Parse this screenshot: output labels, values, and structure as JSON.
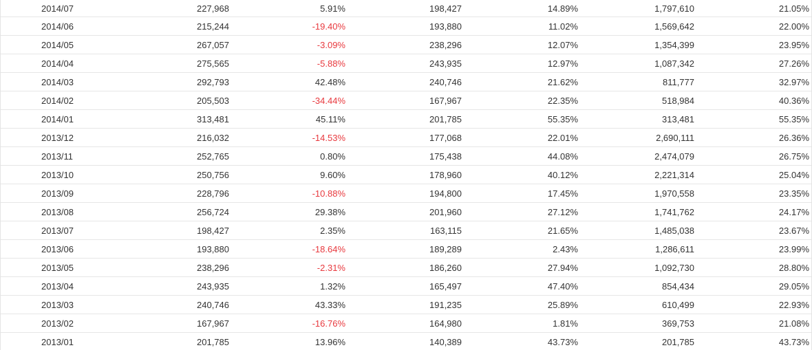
{
  "colors": {
    "text": "#333333",
    "negative": "#e8393e",
    "grid": "#e6e6e6"
  },
  "rows": [
    [
      "2014/07",
      "227,968",
      "5.91%",
      "198,427",
      "14.89%",
      "1,797,610",
      "21.05%"
    ],
    [
      "2014/06",
      "215,244",
      "-19.40%",
      "193,880",
      "11.02%",
      "1,569,642",
      "22.00%"
    ],
    [
      "2014/05",
      "267,057",
      "-3.09%",
      "238,296",
      "12.07%",
      "1,354,399",
      "23.95%"
    ],
    [
      "2014/04",
      "275,565",
      "-5.88%",
      "243,935",
      "12.97%",
      "1,087,342",
      "27.26%"
    ],
    [
      "2014/03",
      "292,793",
      "42.48%",
      "240,746",
      "21.62%",
      "811,777",
      "32.97%"
    ],
    [
      "2014/02",
      "205,503",
      "-34.44%",
      "167,967",
      "22.35%",
      "518,984",
      "40.36%"
    ],
    [
      "2014/01",
      "313,481",
      "45.11%",
      "201,785",
      "55.35%",
      "313,481",
      "55.35%"
    ],
    [
      "2013/12",
      "216,032",
      "-14.53%",
      "177,068",
      "22.01%",
      "2,690,111",
      "26.36%"
    ],
    [
      "2013/11",
      "252,765",
      "0.80%",
      "175,438",
      "44.08%",
      "2,474,079",
      "26.75%"
    ],
    [
      "2013/10",
      "250,756",
      "9.60%",
      "178,960",
      "40.12%",
      "2,221,314",
      "25.04%"
    ],
    [
      "2013/09",
      "228,796",
      "-10.88%",
      "194,800",
      "17.45%",
      "1,970,558",
      "23.35%"
    ],
    [
      "2013/08",
      "256,724",
      "29.38%",
      "201,960",
      "27.12%",
      "1,741,762",
      "24.17%"
    ],
    [
      "2013/07",
      "198,427",
      "2.35%",
      "163,115",
      "21.65%",
      "1,485,038",
      "23.67%"
    ],
    [
      "2013/06",
      "193,880",
      "-18.64%",
      "189,289",
      "2.43%",
      "1,286,611",
      "23.99%"
    ],
    [
      "2013/05",
      "238,296",
      "-2.31%",
      "186,260",
      "27.94%",
      "1,092,730",
      "28.80%"
    ],
    [
      "2013/04",
      "243,935",
      "1.32%",
      "165,497",
      "47.40%",
      "854,434",
      "29.05%"
    ],
    [
      "2013/03",
      "240,746",
      "43.33%",
      "191,235",
      "25.89%",
      "610,499",
      "22.93%"
    ],
    [
      "2013/02",
      "167,967",
      "-16.76%",
      "164,980",
      "1.81%",
      "369,753",
      "21.08%"
    ],
    [
      "2013/01",
      "201,785",
      "13.96%",
      "140,389",
      "43.73%",
      "201,785",
      "43.73%"
    ]
  ]
}
